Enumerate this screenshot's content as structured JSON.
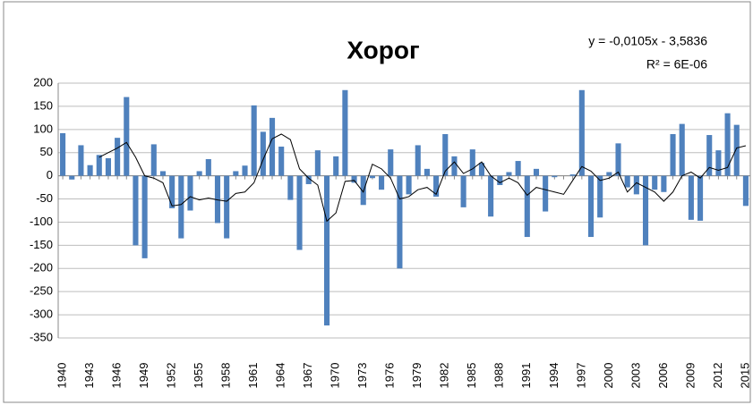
{
  "chart_data": {
    "type": "bar",
    "title": "Хорог",
    "annotations": [
      "y = -0,0105x - 3,5836",
      "R² = 6E-06"
    ],
    "categories": [
      "1940",
      null,
      null,
      "1943",
      null,
      null,
      "1946",
      null,
      null,
      "1949",
      null,
      null,
      "1952",
      null,
      null,
      "1955",
      null,
      null,
      "1958",
      null,
      null,
      "1961",
      null,
      null,
      "1964",
      null,
      null,
      "1967",
      null,
      null,
      "1970",
      null,
      null,
      "1973",
      null,
      null,
      "1976",
      null,
      null,
      "1979",
      null,
      null,
      "1982",
      null,
      null,
      "1985",
      null,
      null,
      "1988",
      null,
      null,
      "1991",
      null,
      null,
      "1994",
      null,
      null,
      "1997",
      null,
      null,
      "2000",
      null,
      null,
      "2003",
      null,
      null,
      "2006",
      null,
      null,
      "2009",
      null,
      null,
      "2012",
      null,
      null,
      "2015"
    ],
    "series": [
      {
        "type": "bar",
        "color": "#4f81bd",
        "values": [
          92,
          -8,
          66,
          23,
          45,
          38,
          82,
          170,
          -150,
          -178,
          68,
          10,
          -70,
          -135,
          -75,
          10,
          36,
          -102,
          -135,
          10,
          22,
          152,
          95,
          125,
          63,
          -52,
          -160,
          -18,
          55,
          -323,
          42,
          185,
          -15,
          -63,
          -5,
          -30,
          57,
          -200,
          -40,
          66,
          15,
          -45,
          90,
          42,
          -68,
          57,
          28,
          -88,
          -20,
          8,
          32,
          -132,
          15,
          -77,
          -3,
          0,
          3,
          185,
          -132,
          -90,
          8,
          70,
          -25,
          -40,
          -150,
          -30,
          -35,
          90,
          112,
          -95,
          -97,
          88,
          55,
          135,
          110,
          -65
        ]
      },
      {
        "type": "line",
        "color": "#000000",
        "values": [
          null,
          null,
          null,
          null,
          40,
          50,
          60,
          72,
          40,
          0,
          -5,
          -15,
          -65,
          -62,
          -45,
          -52,
          -48,
          -52,
          -55,
          -38,
          -35,
          -15,
          35,
          80,
          90,
          78,
          15,
          -5,
          -20,
          -98,
          -80,
          -12,
          -10,
          -35,
          25,
          15,
          -5,
          -50,
          -45,
          -30,
          -25,
          -40,
          10,
          30,
          5,
          15,
          30,
          0,
          -15,
          -5,
          -15,
          -42,
          -25,
          -30,
          -35,
          -40,
          -10,
          20,
          10,
          -10,
          -5,
          8,
          -35,
          -15,
          -25,
          -35,
          -55,
          -35,
          0,
          8,
          -5,
          18,
          12,
          18,
          60,
          65
        ]
      }
    ],
    "ylim": [
      -350,
      200
    ],
    "yticks": [
      -350,
      -300,
      -250,
      -200,
      -150,
      -100,
      -50,
      0,
      50,
      100,
      150,
      200
    ],
    "grid": true
  }
}
